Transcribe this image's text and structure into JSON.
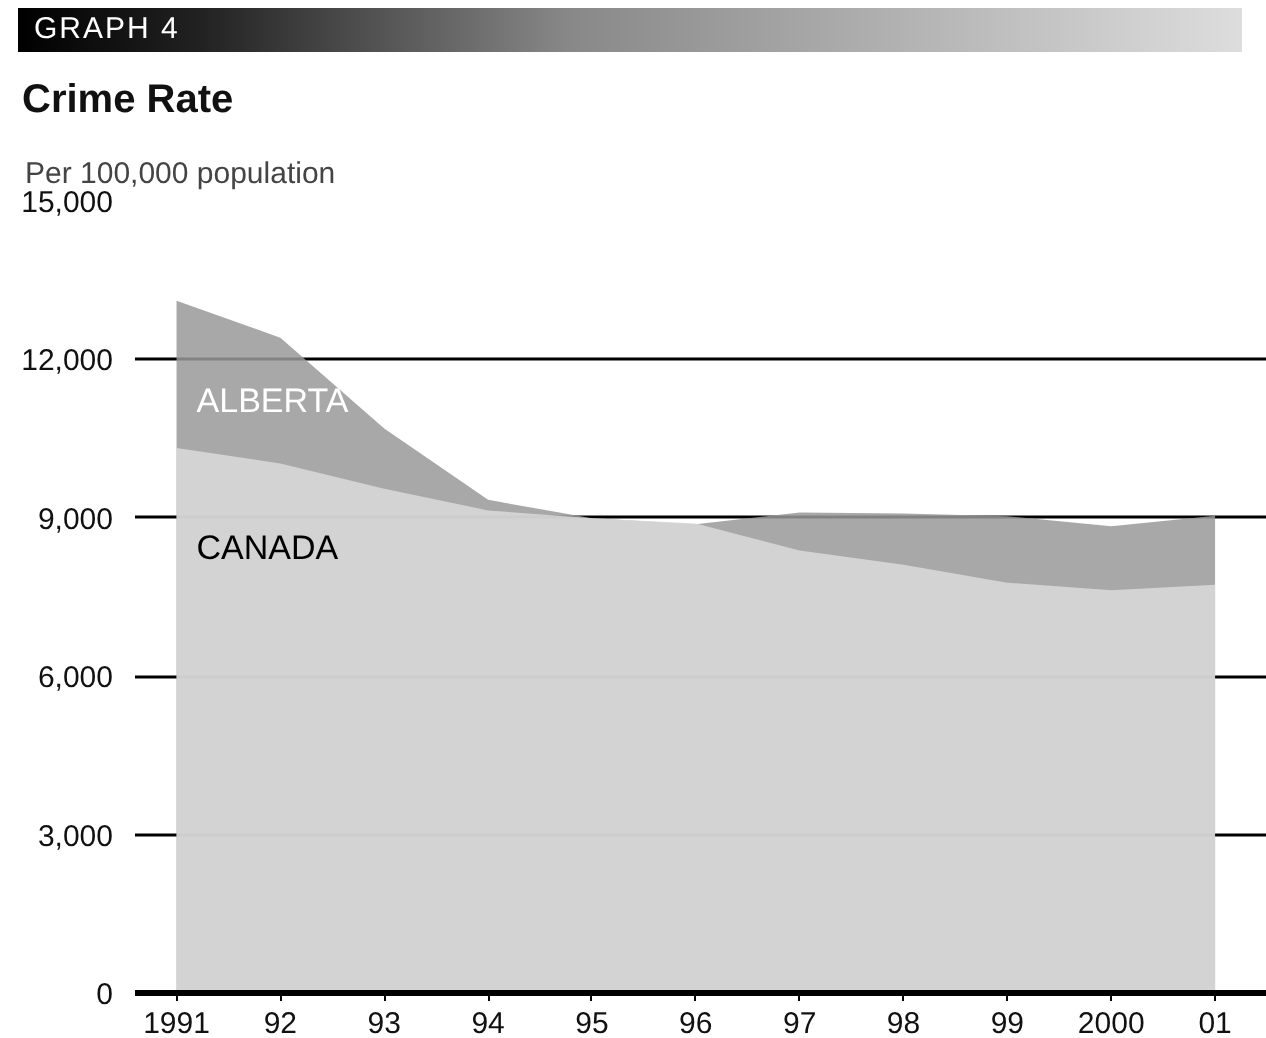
{
  "chart_data": {
    "type": "area",
    "title": "Crime Rate",
    "ylabel": "Per 100,000 population",
    "annotations": [
      "GRAPH 4"
    ],
    "x": [
      1991,
      1992,
      1993,
      1994,
      1995,
      1996,
      1997,
      1998,
      1999,
      2000,
      2001
    ],
    "series": [
      {
        "name": "ALBERTA",
        "color": "#999999",
        "values": [
          13110,
          12410,
          10690,
          9340,
          8990,
          8880,
          9100,
          9080,
          9030,
          8840,
          9040
        ]
      },
      {
        "name": "CANADA",
        "color": "#dadada",
        "values": [
          10320,
          10030,
          9550,
          9140,
          8990,
          8890,
          8380,
          8110,
          7770,
          7630,
          7730
        ]
      }
    ],
    "xlim": [
      1990.6,
      2001.5
    ],
    "xticks": [
      1991,
      {
        "value": 1992,
        "label": "92"
      },
      {
        "value": 1993,
        "label": "93"
      },
      {
        "value": 1994,
        "label": "94"
      },
      {
        "value": 1995,
        "label": "95"
      },
      {
        "value": 1996,
        "label": "96"
      },
      {
        "value": 1997,
        "label": "97"
      },
      {
        "value": 1998,
        "label": "98"
      },
      {
        "value": 1999,
        "label": "99"
      },
      {
        "value": 2000,
        "label": "2000"
      },
      {
        "value": 2001,
        "label": "01"
      }
    ],
    "ylim": [
      0,
      15000
    ],
    "yticks": [
      {
        "value": 0,
        "label": "0"
      },
      {
        "value": 3000,
        "label": "3,000"
      },
      {
        "value": 6000,
        "label": "6,000"
      },
      {
        "value": 9000,
        "label": "9,000"
      },
      {
        "value": 12000,
        "label": "12,000"
      },
      {
        "value": 15000,
        "label": "15,000"
      }
    ],
    "grid": "y"
  }
}
